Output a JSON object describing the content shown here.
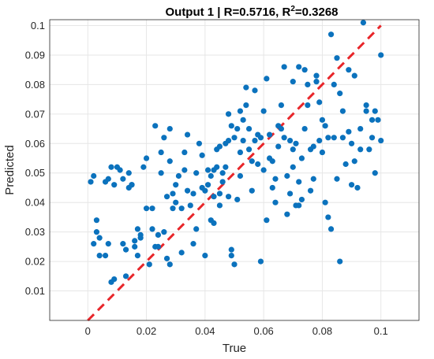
{
  "chart_data": {
    "type": "scatter",
    "title_prefix": "Output 1 | R=0.5716, R",
    "title_sup": "2",
    "title_suffix": "=0.3268",
    "xlabel": "True",
    "ylabel": "Predicted",
    "xlim": [
      -0.013,
      0.113
    ],
    "ylim": [
      0.0,
      0.102
    ],
    "x_ticks": [
      0,
      0.02,
      0.04,
      0.06,
      0.08,
      0.1
    ],
    "x_tick_labels": [
      "0",
      "0.02",
      "0.04",
      "0.06",
      "0.08",
      "0.1"
    ],
    "y_ticks": [
      0.01,
      0.02,
      0.03,
      0.04,
      0.05,
      0.06,
      0.07,
      0.08,
      0.09,
      0.1
    ],
    "y_tick_labels": [
      "0.01",
      "0.02",
      "0.03",
      "0.04",
      "0.05",
      "0.06",
      "0.07",
      "0.08",
      "0.09",
      "0.1"
    ],
    "grid": true,
    "reference_line": {
      "x": [
        0,
        0.1
      ],
      "y": [
        0,
        0.1
      ],
      "style": "dashed",
      "color": "#e8262a"
    },
    "point_color": "#0b72bd",
    "points": [
      [
        0.001,
        0.047
      ],
      [
        0.002,
        0.026
      ],
      [
        0.002,
        0.049
      ],
      [
        0.003,
        0.03
      ],
      [
        0.003,
        0.034
      ],
      [
        0.004,
        0.028
      ],
      [
        0.004,
        0.022
      ],
      [
        0.006,
        0.022
      ],
      [
        0.006,
        0.047
      ],
      [
        0.007,
        0.048
      ],
      [
        0.007,
        0.026
      ],
      [
        0.008,
        0.013
      ],
      [
        0.008,
        0.052
      ],
      [
        0.009,
        0.014
      ],
      [
        0.009,
        0.046
      ],
      [
        0.01,
        0.052
      ],
      [
        0.011,
        0.051
      ],
      [
        0.012,
        0.048
      ],
      [
        0.012,
        0.026
      ],
      [
        0.013,
        0.015
      ],
      [
        0.013,
        0.024
      ],
      [
        0.014,
        0.045
      ],
      [
        0.014,
        0.05
      ],
      [
        0.015,
        0.046
      ],
      [
        0.015,
        0.046
      ],
      [
        0.016,
        0.025
      ],
      [
        0.016,
        0.027
      ],
      [
        0.017,
        0.031
      ],
      [
        0.017,
        0.022
      ],
      [
        0.018,
        0.029
      ],
      [
        0.018,
        0.028
      ],
      [
        0.019,
        0.052
      ],
      [
        0.02,
        0.055
      ],
      [
        0.02,
        0.038
      ],
      [
        0.021,
        0.019
      ],
      [
        0.022,
        0.038
      ],
      [
        0.022,
        0.031
      ],
      [
        0.023,
        0.066
      ],
      [
        0.023,
        0.025
      ],
      [
        0.024,
        0.029
      ],
      [
        0.024,
        0.025
      ],
      [
        0.025,
        0.05
      ],
      [
        0.025,
        0.057
      ],
      [
        0.026,
        0.03
      ],
      [
        0.026,
        0.062
      ],
      [
        0.027,
        0.021
      ],
      [
        0.027,
        0.042
      ],
      [
        0.028,
        0.054
      ],
      [
        0.028,
        0.065
      ],
      [
        0.028,
        0.019
      ],
      [
        0.029,
        0.043
      ],
      [
        0.029,
        0.038
      ],
      [
        0.03,
        0.04
      ],
      [
        0.03,
        0.046
      ],
      [
        0.031,
        0.049
      ],
      [
        0.032,
        0.038
      ],
      [
        0.032,
        0.023
      ],
      [
        0.033,
        0.051
      ],
      [
        0.033,
        0.057
      ],
      [
        0.034,
        0.063
      ],
      [
        0.034,
        0.044
      ],
      [
        0.035,
        0.039
      ],
      [
        0.036,
        0.026
      ],
      [
        0.036,
        0.043
      ],
      [
        0.037,
        0.031
      ],
      [
        0.037,
        0.05
      ],
      [
        0.038,
        0.06
      ],
      [
        0.039,
        0.045
      ],
      [
        0.039,
        0.056
      ],
      [
        0.04,
        0.044
      ],
      [
        0.04,
        0.022
      ],
      [
        0.041,
        0.051
      ],
      [
        0.041,
        0.046
      ],
      [
        0.042,
        0.034
      ],
      [
        0.042,
        0.049
      ],
      [
        0.043,
        0.051
      ],
      [
        0.043,
        0.033
      ],
      [
        0.043,
        0.042
      ],
      [
        0.044,
        0.052
      ],
      [
        0.044,
        0.058
      ],
      [
        0.045,
        0.059
      ],
      [
        0.045,
        0.039
      ],
      [
        0.045,
        0.043
      ],
      [
        0.046,
        0.05
      ],
      [
        0.046,
        0.047
      ],
      [
        0.047,
        0.06
      ],
      [
        0.047,
        0.052
      ],
      [
        0.048,
        0.07
      ],
      [
        0.048,
        0.061
      ],
      [
        0.048,
        0.042
      ],
      [
        0.049,
        0.066
      ],
      [
        0.049,
        0.024
      ],
      [
        0.049,
        0.022
      ],
      [
        0.05,
        0.062
      ],
      [
        0.05,
        0.019
      ],
      [
        0.051,
        0.041
      ],
      [
        0.051,
        0.065
      ],
      [
        0.052,
        0.071
      ],
      [
        0.052,
        0.049
      ],
      [
        0.052,
        0.057
      ],
      [
        0.053,
        0.061
      ],
      [
        0.053,
        0.068
      ],
      [
        0.054,
        0.073
      ],
      [
        0.054,
        0.079
      ],
      [
        0.055,
        0.058
      ],
      [
        0.055,
        0.065
      ],
      [
        0.056,
        0.054
      ],
      [
        0.056,
        0.044
      ],
      [
        0.057,
        0.061
      ],
      [
        0.057,
        0.078
      ],
      [
        0.058,
        0.063
      ],
      [
        0.058,
        0.053
      ],
      [
        0.059,
        0.02
      ],
      [
        0.059,
        0.062
      ],
      [
        0.06,
        0.071
      ],
      [
        0.06,
        0.051
      ],
      [
        0.061,
        0.034
      ],
      [
        0.061,
        0.082
      ],
      [
        0.062,
        0.055
      ],
      [
        0.062,
        0.063
      ],
      [
        0.063,
        0.045
      ],
      [
        0.063,
        0.054
      ],
      [
        0.064,
        0.048
      ],
      [
        0.064,
        0.04
      ],
      [
        0.065,
        0.059
      ],
      [
        0.065,
        0.066
      ],
      [
        0.066,
        0.073
      ],
      [
        0.066,
        0.065
      ],
      [
        0.067,
        0.086
      ],
      [
        0.067,
        0.062
      ],
      [
        0.068,
        0.049
      ],
      [
        0.068,
        0.036
      ],
      [
        0.069,
        0.061
      ],
      [
        0.069,
        0.043
      ],
      [
        0.07,
        0.081
      ],
      [
        0.07,
        0.052
      ],
      [
        0.07,
        0.058
      ],
      [
        0.071,
        0.039
      ],
      [
        0.071,
        0.06
      ],
      [
        0.072,
        0.086
      ],
      [
        0.072,
        0.047
      ],
      [
        0.072,
        0.039
      ],
      [
        0.073,
        0.041
      ],
      [
        0.073,
        0.055
      ],
      [
        0.074,
        0.085
      ],
      [
        0.074,
        0.065
      ],
      [
        0.075,
        0.08
      ],
      [
        0.075,
        0.073
      ],
      [
        0.076,
        0.058
      ],
      [
        0.076,
        0.044
      ],
      [
        0.077,
        0.048
      ],
      [
        0.077,
        0.059
      ],
      [
        0.078,
        0.083
      ],
      [
        0.078,
        0.081
      ],
      [
        0.079,
        0.061
      ],
      [
        0.079,
        0.074
      ],
      [
        0.08,
        0.068
      ],
      [
        0.08,
        0.057
      ],
      [
        0.081,
        0.04
      ],
      [
        0.081,
        0.066
      ],
      [
        0.082,
        0.062
      ],
      [
        0.082,
        0.035
      ],
      [
        0.083,
        0.097
      ],
      [
        0.083,
        0.031
      ],
      [
        0.084,
        0.08
      ],
      [
        0.084,
        0.062
      ],
      [
        0.085,
        0.089
      ],
      [
        0.085,
        0.048
      ],
      [
        0.086,
        0.02
      ],
      [
        0.086,
        0.077
      ],
      [
        0.087,
        0.062
      ],
      [
        0.087,
        0.071
      ],
      [
        0.088,
        0.053
      ],
      [
        0.089,
        0.085
      ],
      [
        0.089,
        0.064
      ],
      [
        0.09,
        0.046
      ],
      [
        0.09,
        0.06
      ],
      [
        0.091,
        0.083
      ],
      [
        0.091,
        0.054
      ],
      [
        0.092,
        0.045
      ],
      [
        0.093,
        0.065
      ],
      [
        0.093,
        0.058
      ],
      [
        0.094,
        0.101
      ],
      [
        0.095,
        0.073
      ],
      [
        0.095,
        0.071
      ],
      [
        0.096,
        0.058
      ],
      [
        0.097,
        0.068
      ],
      [
        0.097,
        0.062
      ],
      [
        0.098,
        0.05
      ],
      [
        0.098,
        0.071
      ],
      [
        0.099,
        0.068
      ],
      [
        0.1,
        0.09
      ],
      [
        0.1,
        0.061
      ]
    ]
  }
}
